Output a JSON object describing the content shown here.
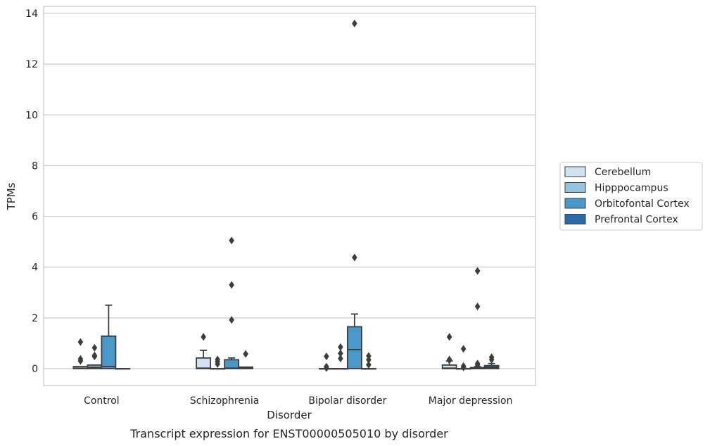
{
  "chart_data": {
    "type": "box",
    "caption": "Transcript expression for ENST00000505010 by disorder",
    "xlabel": "Disorder",
    "ylabel": "TPMs",
    "ylim": [
      -0.65,
      14.3
    ],
    "yticks": [
      0,
      2,
      4,
      6,
      8,
      10,
      12,
      14
    ],
    "grid": true,
    "legend_position": "right",
    "categories": [
      "Control",
      "Schizophrenia",
      "Bipolar disorder",
      "Major depression"
    ],
    "series": [
      {
        "name": "Cerebellum",
        "color": "#d0e1f2",
        "boxes": [
          {
            "q1": 0,
            "median": 0.02,
            "q3": 0.08,
            "whisker_low": 0,
            "whisker_high": 0.08,
            "outliers": [
              1.05,
              0.38,
              0.3
            ]
          },
          {
            "q1": 0,
            "median": 0.02,
            "q3": 0.42,
            "whisker_low": 0,
            "whisker_high": 0.72,
            "outliers": [
              1.25
            ]
          },
          {
            "q1": 0,
            "median": 0,
            "q3": 0,
            "whisker_low": 0,
            "whisker_high": 0,
            "outliers": [
              0.48,
              0.08,
              0.02
            ]
          },
          {
            "q1": 0,
            "median": 0.02,
            "q3": 0.14,
            "whisker_low": 0,
            "whisker_high": 0.3,
            "outliers": [
              1.25,
              0.36,
              0.33
            ]
          }
        ]
      },
      {
        "name": "Hipppocampus",
        "color": "#94c4df",
        "boxes": [
          {
            "q1": 0,
            "median": 0.05,
            "q3": 0.14,
            "whisker_low": 0,
            "whisker_high": 0.14,
            "outliers": [
              0.82,
              0.52,
              0.48
            ]
          },
          {
            "q1": 0,
            "median": 0,
            "q3": 0,
            "whisker_low": 0,
            "whisker_high": 0,
            "outliers": [
              0.36,
              0.28,
              0.18
            ]
          },
          {
            "q1": 0,
            "median": 0,
            "q3": 0,
            "whisker_low": 0,
            "whisker_high": 0,
            "outliers": [
              0.85,
              0.6,
              0.4
            ]
          },
          {
            "q1": 0,
            "median": 0,
            "q3": 0,
            "whisker_low": 0,
            "whisker_high": 0,
            "outliers": [
              0.78,
              0.1,
              0.05
            ]
          }
        ]
      },
      {
        "name": "Orbitofontal Cortex",
        "color": "#4a98c9",
        "boxes": [
          {
            "q1": 0,
            "median": 0.08,
            "q3": 1.28,
            "whisker_low": 0,
            "whisker_high": 2.5,
            "outliers": []
          },
          {
            "q1": 0,
            "median": 0.02,
            "q3": 0.35,
            "whisker_low": 0,
            "whisker_high": 0.42,
            "outliers": [
              5.05,
              3.3,
              1.92
            ]
          },
          {
            "q1": 0,
            "median": 0.75,
            "q3": 1.65,
            "whisker_low": 0,
            "whisker_high": 2.15,
            "outliers": [
              13.6,
              4.38
            ]
          },
          {
            "q1": 0,
            "median": 0,
            "q3": 0.04,
            "whisker_low": 0,
            "whisker_high": 0.08,
            "outliers": [
              3.85,
              2.45,
              0.2,
              0.15
            ]
          }
        ]
      },
      {
        "name": "Prefrontal Cortex",
        "color": "#2a6aab",
        "boxes": [
          {
            "q1": 0,
            "median": 0,
            "q3": 0,
            "whisker_low": 0,
            "whisker_high": 0,
            "outliers": []
          },
          {
            "q1": 0,
            "median": 0.02,
            "q3": 0.06,
            "whisker_low": 0,
            "whisker_high": 0.06,
            "outliers": [
              0.58
            ]
          },
          {
            "q1": 0,
            "median": 0,
            "q3": 0,
            "whisker_low": 0,
            "whisker_high": 0,
            "outliers": [
              0.5,
              0.35,
              0.15
            ]
          },
          {
            "q1": 0,
            "median": 0.05,
            "q3": 0.12,
            "whisker_low": 0,
            "whisker_high": 0.2,
            "outliers": [
              0.45,
              0.35
            ]
          }
        ]
      }
    ]
  }
}
